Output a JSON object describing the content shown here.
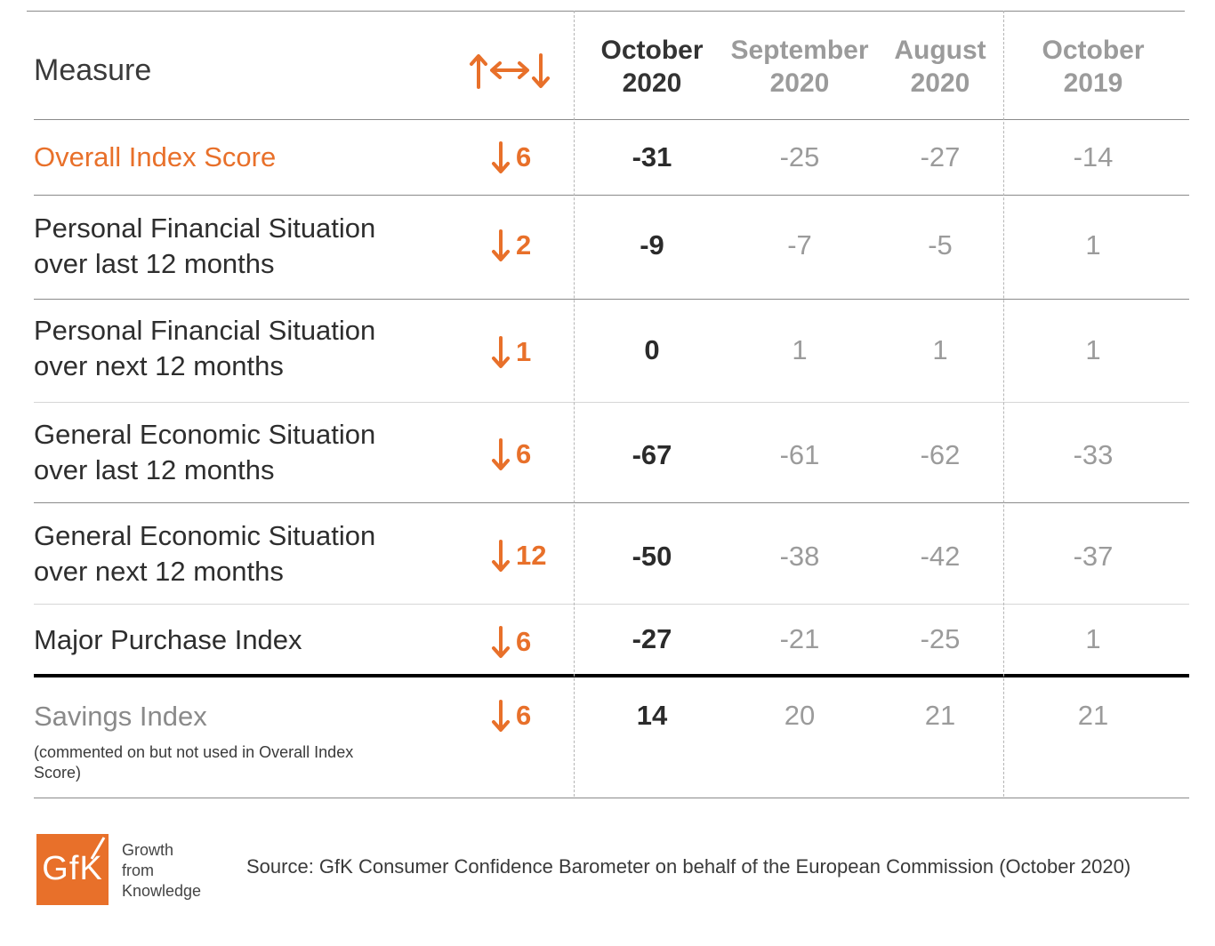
{
  "header": {
    "measure": "Measure",
    "change_icon": "up-left-right-down-arrows-icon",
    "columns": [
      {
        "line1": "October",
        "line2": "2020"
      },
      {
        "line1": "September",
        "line2": "2020"
      },
      {
        "line1": "August",
        "line2": "2020"
      },
      {
        "line1": "October",
        "line2": "2019"
      }
    ]
  },
  "rows": [
    {
      "label1": "Overall Index Score",
      "label2": "",
      "change": "6",
      "direction": "down",
      "values": [
        "-31",
        "-25",
        "-27",
        "-14"
      ]
    },
    {
      "label1": "Personal Financial Situation",
      "label2": "over last 12 months",
      "change": "2",
      "direction": "down",
      "values": [
        "-9",
        "-7",
        "-5",
        "1"
      ]
    },
    {
      "label1": "Personal Financial Situation",
      "label2": "over next 12 months",
      "change": "1",
      "direction": "down",
      "values": [
        "0",
        "1",
        "1",
        "1"
      ]
    },
    {
      "label1": "General Economic Situation",
      "label2": "over last 12 months",
      "change": "6",
      "direction": "down",
      "values": [
        "-67",
        "-61",
        "-62",
        "-33"
      ]
    },
    {
      "label1": "General Economic Situation",
      "label2": "over next 12 months",
      "change": "12",
      "direction": "down",
      "values": [
        "-50",
        "-38",
        "-42",
        "-37"
      ]
    },
    {
      "label1": "Major Purchase Index",
      "label2": "",
      "change": "6",
      "direction": "down",
      "values": [
        "-27",
        "-21",
        "-25",
        "1"
      ]
    },
    {
      "label1": "Savings Index",
      "label2": "",
      "change": "6",
      "direction": "down",
      "values": [
        "14",
        "20",
        "21",
        "21"
      ],
      "note": "(commented on but not used in Overall Index Score)"
    }
  ],
  "colors": {
    "accent": "#e8702a",
    "current": "#2b2b2b",
    "past": "#9b9b9b"
  },
  "footer": {
    "logo_text": "GfK",
    "tagline": [
      "Growth",
      "from",
      "Knowledge"
    ],
    "source": "Source: GfK Consumer Confidence Barometer on behalf of the European Commission (October 2020)"
  }
}
